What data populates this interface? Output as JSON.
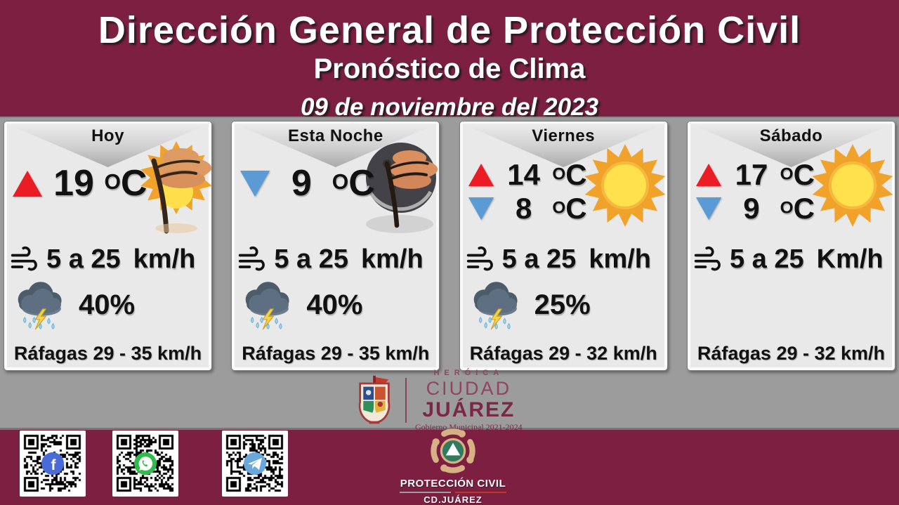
{
  "poster": {
    "title": "Dirección General de Protección Civil",
    "subtitle": "Pronóstico de Clima",
    "date": "09 de noviembre del 2023"
  },
  "units": {
    "temp_sup": "O",
    "temp_base": "C"
  },
  "cards": [
    {
      "label": "Hoy",
      "weather_icon": "windy-tree-sun",
      "temps": [
        {
          "direction": "up",
          "value": "19"
        }
      ],
      "wind": {
        "value": "5 a 25",
        "unit": "km/h"
      },
      "rain": "40%",
      "gusts": {
        "label": "Ráfagas",
        "value": "29 - 35",
        "unit": "km/h"
      }
    },
    {
      "label": "Esta Noche",
      "weather_icon": "windy-tree-moon",
      "temps": [
        {
          "direction": "down",
          "value": "9"
        }
      ],
      "wind": {
        "value": "5 a 25",
        "unit": "km/h"
      },
      "rain": "40%",
      "gusts": {
        "label": "Ráfagas",
        "value": "29 - 35",
        "unit": "km/h"
      }
    },
    {
      "label": "Viernes",
      "weather_icon": "sun",
      "temps": [
        {
          "direction": "up",
          "value": "14"
        },
        {
          "direction": "down",
          "value": "8"
        }
      ],
      "wind": {
        "value": "5 a 25",
        "unit": "km/h"
      },
      "rain": "25%",
      "gusts": {
        "label": "Ráfagas",
        "value": "29 - 32",
        "unit": "km/h"
      }
    },
    {
      "label": "Sábado",
      "weather_icon": "sun",
      "temps": [
        {
          "direction": "up",
          "value": "17"
        },
        {
          "direction": "down",
          "value": "9"
        }
      ],
      "wind": {
        "value": "5 a 25",
        "unit": "Km/h"
      },
      "rain": null,
      "gusts": {
        "label": "Ráfagas",
        "value": "29 - 32",
        "unit": "km/h"
      }
    }
  ],
  "footer": {
    "city_logo": {
      "heroica": "HERÓICA",
      "ciudad": "CIUDAD",
      "juarez": "JUÁREZ",
      "gobierno": "Gobierno Municipal 2021-2024"
    },
    "proteccion_civil": {
      "line1": "PROTECCIÓN CIVIL",
      "line2": "CD.JUÁREZ"
    },
    "qr_codes": [
      {
        "icon": "facebook"
      },
      {
        "icon": "whatsapp"
      },
      {
        "icon": "telegram"
      }
    ]
  },
  "colors": {
    "maroon": "#7c1f40",
    "band_gray": "#9c9c9c",
    "card_bg": "#e9e9e9",
    "temp_up_red": "#ec1c24",
    "temp_down_blue": "#5b9bd5",
    "facebook_blue": "#4a6ad8",
    "whatsapp_green": "#31bb4a",
    "telegram_blue": "#68a8dd"
  }
}
